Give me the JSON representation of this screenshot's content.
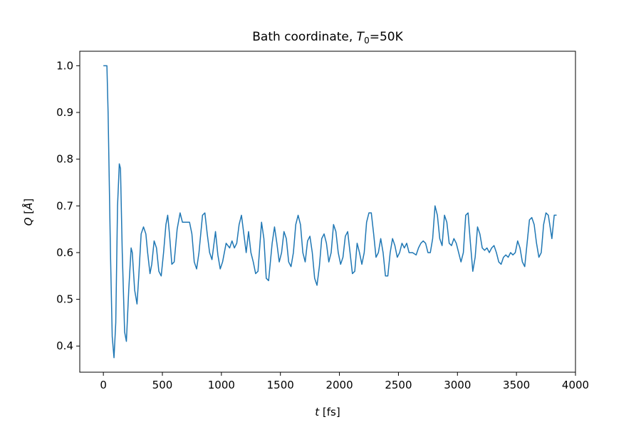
{
  "chart_data": {
    "type": "line",
    "title": [
      "Bath coordinate, ",
      "T",
      "0",
      "=50K"
    ],
    "xlabel": [
      "t",
      " [fs]"
    ],
    "ylabel": [
      "Q",
      " [",
      "Å",
      "]"
    ],
    "xlim": [
      -200,
      4000
    ],
    "ylim": [
      0.344,
      1.031
    ],
    "xticks": [
      0,
      500,
      1000,
      1500,
      2000,
      2500,
      3000,
      3500,
      4000
    ],
    "yticks": [
      0.4,
      0.5,
      0.6,
      0.7,
      0.8,
      0.9,
      {
        "value": 1,
        "label": "1.0"
      }
    ],
    "series": [
      {
        "color": "#1f77b4",
        "x": [
          0,
          20,
          30,
          40,
          60,
          75,
          90,
          105,
          120,
          135,
          145,
          160,
          180,
          195,
          215,
          235,
          245,
          265,
          285,
          300,
          320,
          340,
          360,
          375,
          395,
          410,
          430,
          450,
          470,
          490,
          510,
          530,
          545,
          560,
          580,
          600,
          625,
          650,
          670,
          700,
          730,
          750,
          770,
          790,
          810,
          840,
          860,
          880,
          900,
          920,
          950,
          970,
          990,
          1010,
          1040,
          1070,
          1090,
          1110,
          1130,
          1150,
          1170,
          1190,
          1210,
          1230,
          1250,
          1270,
          1290,
          1310,
          1340,
          1360,
          1380,
          1400,
          1430,
          1450,
          1470,
          1490,
          1510,
          1530,
          1550,
          1570,
          1590,
          1610,
          1630,
          1650,
          1670,
          1690,
          1710,
          1730,
          1750,
          1770,
          1790,
          1810,
          1830,
          1850,
          1870,
          1890,
          1910,
          1930,
          1950,
          1970,
          1990,
          2010,
          2030,
          2050,
          2070,
          2090,
          2110,
          2130,
          2150,
          2170,
          2190,
          2210,
          2230,
          2250,
          2270,
          2290,
          2310,
          2330,
          2350,
          2370,
          2390,
          2410,
          2430,
          2450,
          2470,
          2490,
          2510,
          2530,
          2550,
          2570,
          2590,
          2620,
          2650,
          2670,
          2690,
          2710,
          2730,
          2750,
          2770,
          2790,
          2810,
          2830,
          2850,
          2870,
          2890,
          2910,
          2930,
          2950,
          2970,
          2990,
          3010,
          3030,
          3050,
          3070,
          3090,
          3110,
          3130,
          3150,
          3170,
          3190,
          3210,
          3230,
          3250,
          3270,
          3290,
          3310,
          3330,
          3350,
          3370,
          3390,
          3410,
          3430,
          3450,
          3470,
          3490,
          3510,
          3530,
          3550,
          3570,
          3590,
          3610,
          3630,
          3650,
          3670,
          3690,
          3710,
          3730,
          3750,
          3770,
          3800,
          3820,
          3840
        ],
        "values": [
          1.0,
          1.0,
          1.0,
          0.9,
          0.6,
          0.42,
          0.375,
          0.45,
          0.7,
          0.79,
          0.78,
          0.6,
          0.43,
          0.41,
          0.52,
          0.61,
          0.6,
          0.52,
          0.49,
          0.55,
          0.64,
          0.655,
          0.64,
          0.6,
          0.555,
          0.575,
          0.625,
          0.61,
          0.56,
          0.55,
          0.6,
          0.66,
          0.68,
          0.64,
          0.575,
          0.58,
          0.65,
          0.685,
          0.665,
          0.665,
          0.665,
          0.64,
          0.58,
          0.565,
          0.6,
          0.68,
          0.685,
          0.64,
          0.6,
          0.585,
          0.645,
          0.595,
          0.565,
          0.58,
          0.62,
          0.61,
          0.625,
          0.61,
          0.62,
          0.66,
          0.68,
          0.64,
          0.6,
          0.645,
          0.6,
          0.58,
          0.555,
          0.56,
          0.665,
          0.63,
          0.545,
          0.54,
          0.62,
          0.655,
          0.62,
          0.58,
          0.6,
          0.645,
          0.63,
          0.58,
          0.57,
          0.6,
          0.66,
          0.68,
          0.66,
          0.6,
          0.58,
          0.625,
          0.635,
          0.6,
          0.545,
          0.53,
          0.57,
          0.63,
          0.64,
          0.62,
          0.58,
          0.6,
          0.66,
          0.645,
          0.6,
          0.575,
          0.59,
          0.635,
          0.645,
          0.6,
          0.555,
          0.56,
          0.62,
          0.6,
          0.575,
          0.6,
          0.665,
          0.685,
          0.685,
          0.64,
          0.59,
          0.6,
          0.63,
          0.6,
          0.55,
          0.55,
          0.6,
          0.63,
          0.615,
          0.59,
          0.6,
          0.62,
          0.61,
          0.62,
          0.6,
          0.6,
          0.595,
          0.61,
          0.62,
          0.625,
          0.62,
          0.6,
          0.6,
          0.63,
          0.7,
          0.68,
          0.63,
          0.615,
          0.68,
          0.665,
          0.62,
          0.615,
          0.63,
          0.62,
          0.6,
          0.58,
          0.6,
          0.68,
          0.685,
          0.62,
          0.56,
          0.59,
          0.655,
          0.64,
          0.61,
          0.605,
          0.61,
          0.6,
          0.61,
          0.615,
          0.6,
          0.58,
          0.575,
          0.59,
          0.595,
          0.59,
          0.6,
          0.595,
          0.6,
          0.625,
          0.61,
          0.58,
          0.57,
          0.62,
          0.67,
          0.675,
          0.66,
          0.62,
          0.59,
          0.6,
          0.66,
          0.685,
          0.68,
          0.63,
          0.68,
          0.68
        ]
      }
    ]
  }
}
